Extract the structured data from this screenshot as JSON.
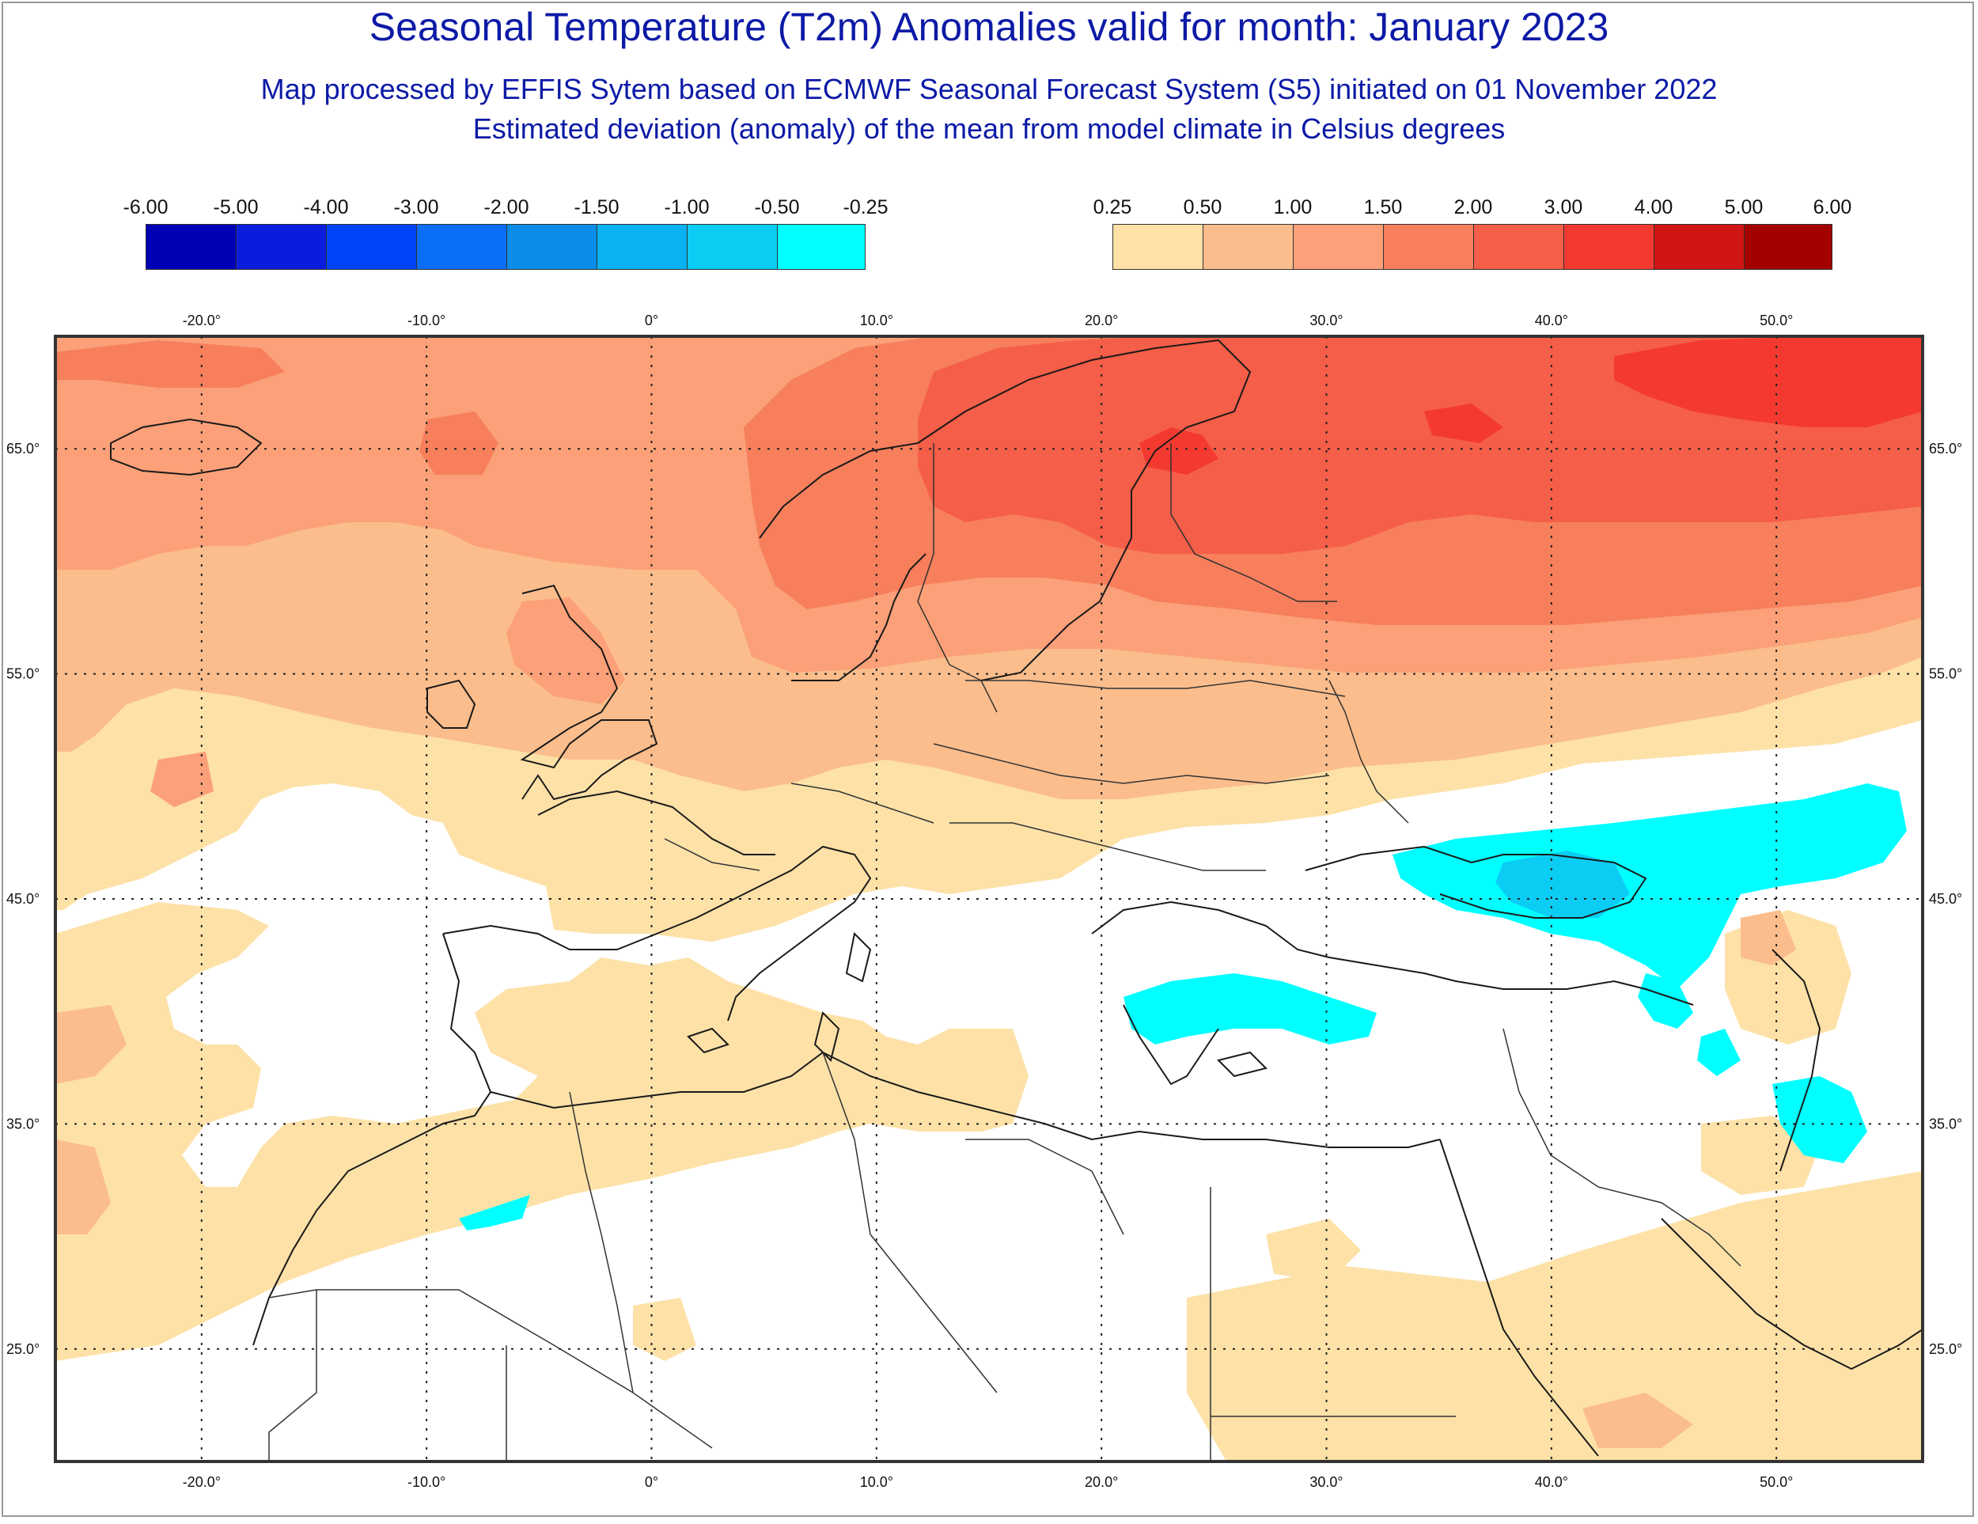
{
  "title": "Seasonal Temperature (T2m) Anomalies valid for month: January 2023",
  "subtitle_1": "Map processed by EFFIS Sytem based on ECMWF Seasonal Forecast System (S5) initiated on 01 November 2022",
  "subtitle_2": "Estimated deviation (anomaly) of the mean from model climate in Celsius degrees",
  "legend_cold": {
    "ticks": [
      "-6.00",
      "-5.00",
      "-4.00",
      "-3.00",
      "-2.00",
      "-1.50",
      "-1.00",
      "-0.50",
      "-0.25"
    ],
    "colors": [
      "#0000b5",
      "#0a1ddd",
      "#0044fa",
      "#0a6ef6",
      "#0a8de9",
      "#0ab2f2",
      "#0bcdf4",
      "#00ffff"
    ]
  },
  "legend_warm": {
    "ticks": [
      "0.25",
      "0.50",
      "1.00",
      "1.50",
      "2.00",
      "3.00",
      "4.00",
      "5.00",
      "6.00"
    ],
    "colors": [
      "#fde1a7",
      "#fbbd8c",
      "#fba078",
      "#f77f5c",
      "#f55e48",
      "#f43a30",
      "#d11414",
      "#a30000"
    ]
  },
  "map": {
    "lon_labels": [
      "-20.0°",
      "-10.0°",
      "0°",
      "10.0°",
      "20.0°",
      "30.0°",
      "40.0°",
      "50.0°"
    ],
    "lat_labels": [
      "65.0°",
      "55.0°",
      "45.0°",
      "35.0°",
      "25.0°"
    ],
    "lon_values": [
      -20,
      -10,
      0,
      10,
      20,
      30,
      40,
      50
    ],
    "lat_values": [
      65,
      55,
      45,
      35,
      25
    ],
    "extent": {
      "lon_min": -26.5,
      "lon_max": 56.5,
      "lat_min": 20.0,
      "lat_max": 70.0
    }
  }
}
